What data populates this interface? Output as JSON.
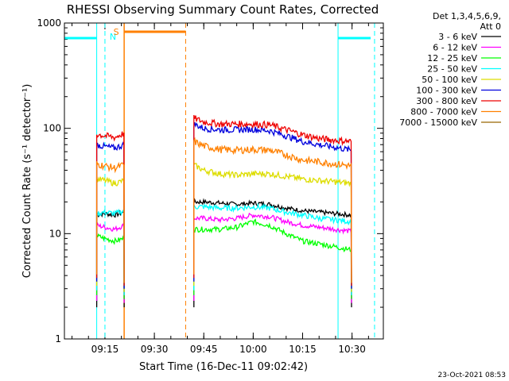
{
  "chart_data": {
    "type": "line",
    "title": "RHESSI Observing Summary Count Rates, Corrected",
    "xlabel": "Start Time (16-Dec-11 09:02:42)",
    "ylabel": "Corrected Count Rate (s⁻¹ detector⁻¹)",
    "yscale": "log",
    "ylim": [
      1,
      1000
    ],
    "xlim": [
      "09:02:42",
      "10:39:30"
    ],
    "x_ticks": [
      "09:15",
      "09:30",
      "09:45",
      "10:00",
      "10:15",
      "10:30"
    ],
    "y_ticks": [
      "1",
      "10",
      "100",
      "1000"
    ],
    "legend_title": "Det 1,3,4,5,6,9,\nAtt 0",
    "legend_position": "top-right",
    "timestamp": "23-Oct-2021 08:53",
    "series": [
      {
        "name": "3 - 6 keV",
        "color": "#000000",
        "x": [
          "09:12:30",
          "09:15",
          "09:18",
          "09:20:50",
          "09:42",
          "09:45",
          "09:50",
          "09:55",
          "10:00",
          "10:05",
          "10:10",
          "10:15",
          "10:20",
          "10:25",
          "10:29:50"
        ],
        "values": [
          15,
          15.5,
          15,
          16,
          20,
          20,
          19.5,
          19,
          19.5,
          19,
          17.5,
          16.5,
          16,
          15.5,
          15
        ]
      },
      {
        "name": "6 - 12 keV",
        "color": "#ff00ff",
        "x": [
          "09:12:30",
          "09:15",
          "09:18",
          "09:20:50",
          "09:42",
          "09:45",
          "09:50",
          "09:55",
          "10:00",
          "10:05",
          "10:10",
          "10:15",
          "10:20",
          "10:25",
          "10:29:50"
        ],
        "values": [
          12,
          11.5,
          11,
          12,
          14,
          14,
          13.5,
          14,
          15,
          14.5,
          13,
          12,
          11.5,
          11,
          10.5
        ]
      },
      {
        "name": "12 - 25 keV",
        "color": "#00ff00",
        "x": [
          "09:12:30",
          "09:15",
          "09:18",
          "09:20:50",
          "09:42",
          "09:45",
          "09:50",
          "09:55",
          "10:00",
          "10:05",
          "10:10",
          "10:15",
          "10:20",
          "10:25",
          "10:29:50"
        ],
        "values": [
          9.5,
          9,
          8.5,
          9,
          11,
          11,
          11,
          11.5,
          13,
          12,
          10,
          8.5,
          8,
          7.5,
          7
        ]
      },
      {
        "name": "25 - 50 keV",
        "color": "#00ffff",
        "x": [
          "09:12:30",
          "09:15",
          "09:18",
          "09:20:50",
          "09:42",
          "09:45",
          "09:50",
          "09:55",
          "10:00",
          "10:05",
          "10:10",
          "10:15",
          "10:20",
          "10:25",
          "10:29:50"
        ],
        "values": [
          15.5,
          16,
          15.5,
          16.5,
          18,
          18,
          17.5,
          17.5,
          18,
          17.5,
          16,
          15,
          14,
          13.5,
          13
        ]
      },
      {
        "name": "50 - 100 keV",
        "color": "#dddd00",
        "x": [
          "09:12:30",
          "09:15",
          "09:18",
          "09:20:50",
          "09:42",
          "09:45",
          "09:50",
          "09:55",
          "10:00",
          "10:05",
          "10:10",
          "10:15",
          "10:20",
          "10:25",
          "10:29:50"
        ],
        "values": [
          33,
          32,
          30,
          32,
          45,
          40,
          37,
          36,
          37,
          37,
          35,
          33,
          32,
          31,
          30
        ]
      },
      {
        "name": "100 - 300 keV",
        "color": "#0000dd",
        "x": [
          "09:12:30",
          "09:15",
          "09:18",
          "09:20:50",
          "09:42",
          "09:45",
          "09:50",
          "09:55",
          "10:00",
          "10:05",
          "10:10",
          "10:15",
          "10:20",
          "10:25",
          "10:29:50"
        ],
        "values": [
          70,
          67,
          65,
          70,
          110,
          100,
          97,
          97,
          98,
          95,
          85,
          75,
          70,
          66,
          62
        ]
      },
      {
        "name": "300 - 800 keV",
        "color": "#ee0000",
        "x": [
          "09:12:30",
          "09:15",
          "09:18",
          "09:20:50",
          "09:42",
          "09:45",
          "09:50",
          "09:55",
          "10:00",
          "10:05",
          "10:10",
          "10:15",
          "10:20",
          "10:25",
          "10:29:50"
        ],
        "values": [
          88,
          85,
          82,
          90,
          125,
          115,
          110,
          110,
          110,
          108,
          97,
          87,
          80,
          77,
          75
        ]
      },
      {
        "name": "800 - 7000 keV",
        "color": "#ff8000",
        "x": [
          "09:12:30",
          "09:15",
          "09:18",
          "09:20:50",
          "09:42",
          "09:45",
          "09:50",
          "09:55",
          "10:00",
          "10:05",
          "10:10",
          "10:15",
          "10:20",
          "10:25",
          "10:29:50"
        ],
        "values": [
          46,
          44,
          42,
          45,
          75,
          68,
          63,
          62,
          63,
          62,
          56,
          50,
          48,
          46,
          44
        ]
      },
      {
        "name": "7000 - 15000 keV",
        "color": "#996600",
        "x": [],
        "values": []
      }
    ],
    "flag_markers": [
      {
        "label": "N",
        "color": "#00ffff",
        "at": "09:15:00",
        "style": "dashed"
      },
      {
        "label": "S",
        "color": "#ff8000",
        "at": "09:20:50",
        "style": "solid"
      }
    ]
  }
}
